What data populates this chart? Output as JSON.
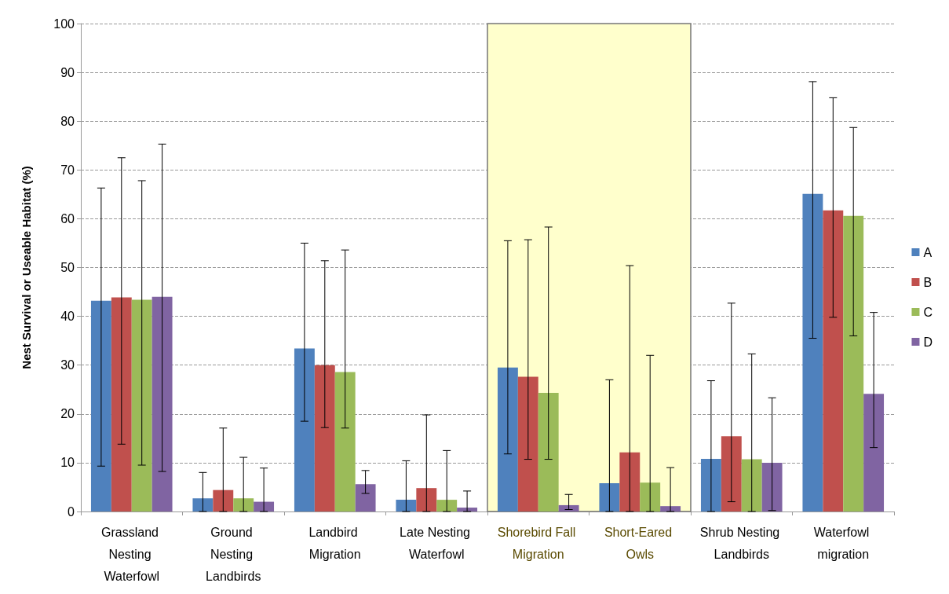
{
  "chart_data": {
    "type": "bar",
    "ylabel": "Nest Survival or Useable Habitat (%)",
    "categories": [
      "Grassland Nesting Waterfowl",
      "Ground Nesting Landbirds",
      "Landbird Migration",
      "Late Nesting Waterfowl",
      "Shorebird Fall Migration",
      "Short-Eared Owls",
      "Shrub Nesting Landbirds",
      "Waterfowl migration"
    ],
    "series": [
      {
        "name": "A",
        "color": "#4f81bd",
        "values": [
          43.2,
          2.7,
          33.4,
          2.4,
          29.5,
          5.8,
          10.8,
          65.1
        ],
        "errors": [
          [
            9.3,
            66.3
          ],
          [
            0,
            8.0
          ],
          [
            18.5,
            55.0
          ],
          [
            0,
            10.4
          ],
          [
            11.8,
            55.5
          ],
          [
            0,
            27.0
          ],
          [
            0,
            26.8
          ],
          [
            35.5,
            88.1
          ]
        ]
      },
      {
        "name": "B",
        "color": "#c0504d",
        "values": [
          43.9,
          4.4,
          30.0,
          4.8,
          27.6,
          12.1,
          15.4,
          61.7
        ],
        "errors": [
          [
            13.8,
            72.5
          ],
          [
            0,
            17.1
          ],
          [
            17.2,
            51.4
          ],
          [
            0,
            19.8
          ],
          [
            10.7,
            55.7
          ],
          [
            0,
            50.4
          ],
          [
            2.0,
            42.7
          ],
          [
            39.8,
            84.8
          ]
        ]
      },
      {
        "name": "C",
        "color": "#9bbb59",
        "values": [
          43.4,
          2.7,
          28.6,
          2.4,
          24.3,
          5.9,
          10.7,
          60.6
        ],
        "errors": [
          [
            9.5,
            67.8
          ],
          [
            0,
            11.1
          ],
          [
            17.1,
            53.6
          ],
          [
            0,
            12.5
          ],
          [
            10.7,
            58.3
          ],
          [
            0,
            32.0
          ],
          [
            0,
            32.3
          ],
          [
            36.0,
            78.7
          ]
        ]
      },
      {
        "name": "D",
        "color": "#8064a2",
        "values": [
          44.0,
          2.0,
          5.6,
          0.8,
          1.3,
          1.1,
          10.0,
          24.1
        ],
        "errors": [
          [
            8.2,
            75.3
          ],
          [
            0,
            8.9
          ],
          [
            3.7,
            8.4
          ],
          [
            0,
            4.2
          ],
          [
            0.4,
            3.5
          ],
          [
            0,
            9.0
          ],
          [
            0.2,
            23.3
          ],
          [
            13.1,
            40.8
          ]
        ]
      }
    ],
    "bands": [
      {
        "axis": "x",
        "from": "Shorebird Fall Migration",
        "to": "Short-Eared Owls",
        "color": "#ffffcc"
      }
    ],
    "ylim": [
      0,
      100
    ],
    "yticks": [
      0,
      10,
      20,
      30,
      40,
      50,
      60,
      70,
      80,
      90,
      100
    ],
    "grid": "y",
    "legend": "right"
  }
}
